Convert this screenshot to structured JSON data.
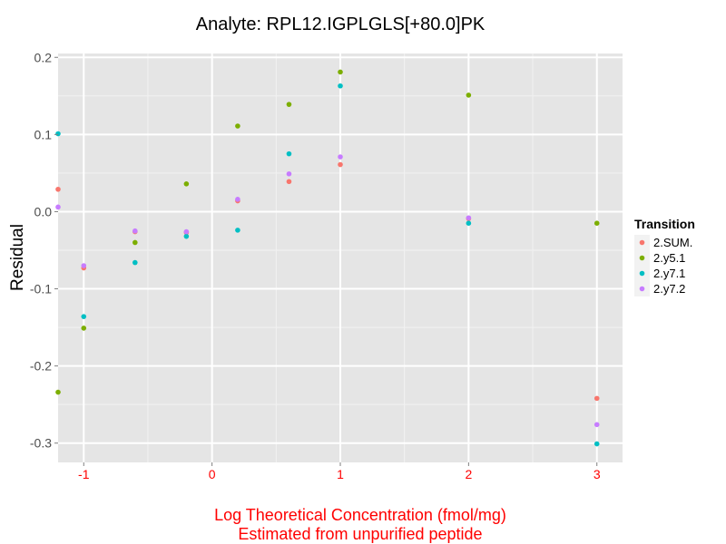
{
  "chart_data": {
    "type": "scatter",
    "title": "Analyte: RPL12.IGPLGLS[+80.0]PK",
    "xlabel": [
      "Log Theoretical Concentration (fmol/mg)",
      "Estimated from unpurified peptide"
    ],
    "ylabel": "Residual",
    "xlim": [
      -1.2,
      3.2
    ],
    "ylim": [
      -0.325,
      0.205
    ],
    "x_ticks": [
      -1,
      0,
      1,
      2,
      3
    ],
    "x_tick_labels": [
      "-1",
      "0",
      "1",
      "2",
      "3"
    ],
    "y_ticks": [
      -0.3,
      -0.2,
      -0.1,
      0.0,
      0.1,
      0.2
    ],
    "y_tick_labels": [
      "-0.3",
      "-0.2",
      "-0.1",
      "0.0",
      "0.1",
      "0.2"
    ],
    "grid": true,
    "legend": {
      "title": "Transition",
      "placement": "right"
    },
    "series": [
      {
        "name": "2.SUM.",
        "color": "#f8766d",
        "points": [
          [
            -1.2,
            0.029
          ],
          [
            -1.0,
            -0.073
          ],
          [
            -0.6,
            -0.026
          ],
          [
            -0.2,
            -0.027
          ],
          [
            0.2,
            0.014
          ],
          [
            0.6,
            0.039
          ],
          [
            1.0,
            0.061
          ],
          [
            2.0,
            -0.009
          ],
          [
            3.0,
            -0.242
          ]
        ]
      },
      {
        "name": "2.y5.1",
        "color": "#7cae00",
        "points": [
          [
            -1.2,
            -0.234
          ],
          [
            -1.0,
            -0.151
          ],
          [
            -0.6,
            -0.04
          ],
          [
            -0.2,
            0.036
          ],
          [
            0.2,
            0.111
          ],
          [
            0.6,
            0.139
          ],
          [
            1.0,
            0.181
          ],
          [
            2.0,
            0.151
          ],
          [
            3.0,
            -0.015
          ]
        ]
      },
      {
        "name": "2.y7.1",
        "color": "#00bfc4",
        "points": [
          [
            -1.2,
            0.101
          ],
          [
            -1.0,
            -0.136
          ],
          [
            -0.6,
            -0.066
          ],
          [
            -0.2,
            -0.032
          ],
          [
            0.2,
            -0.024
          ],
          [
            0.6,
            0.075
          ],
          [
            1.0,
            0.163
          ],
          [
            2.0,
            -0.015
          ],
          [
            3.0,
            -0.301
          ]
        ]
      },
      {
        "name": "2.y7.2",
        "color": "#c77cff",
        "points": [
          [
            -1.2,
            0.006
          ],
          [
            -1.0,
            -0.07
          ],
          [
            -0.6,
            -0.025
          ],
          [
            -0.2,
            -0.026
          ],
          [
            0.2,
            0.016
          ],
          [
            0.6,
            0.049
          ],
          [
            1.0,
            0.071
          ],
          [
            2.0,
            -0.008
          ],
          [
            3.0,
            -0.276
          ]
        ]
      }
    ]
  }
}
